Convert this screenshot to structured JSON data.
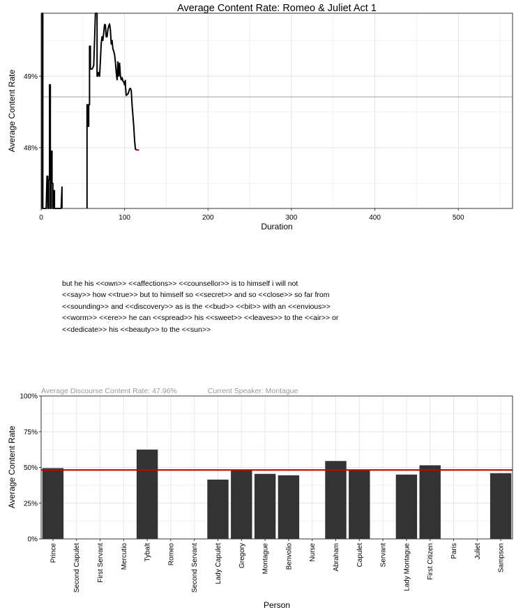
{
  "top_chart": {
    "chart_data": {
      "type": "line",
      "title": "Average Content Rate: Romeo & Juliet Act 1",
      "xlabel": "Duration",
      "ylabel": "Average Content Rate",
      "xlim": [
        0,
        565
      ],
      "ylim": [
        47.15,
        49.88
      ],
      "x_ticks": [
        0,
        100,
        200,
        300,
        400,
        500
      ],
      "x_tick_labels": [
        "0",
        "100",
        "200",
        "300",
        "400",
        "500"
      ],
      "y_ticks": [
        48,
        49
      ],
      "y_tick_labels": [
        "48%",
        "49%"
      ],
      "reference_line": 48.71,
      "grid": true,
      "series": [
        {
          "x": [
            1,
            1,
            1,
            2,
            2,
            2,
            2,
            3,
            3,
            4,
            5,
            6,
            7,
            8,
            8,
            9,
            9,
            10,
            10,
            11,
            11,
            12,
            12,
            13,
            13,
            14,
            14,
            15,
            15,
            16,
            16,
            17,
            17,
            18,
            19,
            20,
            21,
            22,
            23,
            24,
            25,
            25
          ],
          "y": [
            47.15,
            49.88,
            47.15,
            47.15,
            49.88,
            49.88,
            47.15,
            47.15,
            47.15,
            47.15,
            47.15,
            47.15,
            47.6,
            47.6,
            47.15,
            47.15,
            47.55,
            47.55,
            48.88,
            48.88,
            47.15,
            47.15,
            47.95,
            47.95,
            47.5,
            47.5,
            47.15,
            47.15,
            47.4,
            47.4,
            47.15,
            47.15,
            47.15,
            47.15,
            47.15,
            47.15,
            47.15,
            47.15,
            47.15,
            47.15,
            47.45,
            47.15
          ]
        },
        {
          "x": [
            55,
            55,
            56,
            56,
            57,
            57,
            58,
            58,
            59,
            59,
            60,
            60,
            61,
            62,
            63,
            64,
            65,
            66,
            67,
            67,
            68,
            68,
            69,
            70,
            71,
            72,
            73,
            74,
            75,
            76,
            77,
            78,
            79,
            80,
            81,
            82,
            83,
            84,
            85,
            86,
            87,
            88,
            89,
            90,
            91,
            92,
            93,
            94,
            95,
            96,
            97,
            98,
            99,
            100,
            100,
            101,
            101,
            102,
            103,
            104,
            105,
            106,
            107,
            108,
            109,
            110,
            111,
            112,
            113,
            114,
            115
          ],
          "y": [
            47.15,
            48.6,
            48.6,
            48.3,
            48.3,
            48.6,
            48.6,
            49.42,
            49.42,
            49.1,
            49.1,
            49.1,
            49.1,
            49.12,
            49.15,
            49.5,
            49.88,
            49.88,
            49.88,
            49.0,
            49.0,
            49.05,
            49.05,
            49.0,
            49.2,
            49.45,
            49.55,
            49.5,
            49.6,
            49.72,
            49.72,
            49.55,
            49.55,
            49.65,
            49.7,
            49.73,
            49.65,
            49.45,
            49.5,
            49.38,
            49.35,
            49.3,
            49.2,
            49.05,
            48.95,
            49.2,
            49.0,
            49.18,
            49.0,
            48.95,
            48.98,
            48.93,
            48.92,
            48.88,
            48.9,
            48.94,
            48.88,
            48.73,
            48.74,
            48.75,
            48.78,
            48.82,
            48.83,
            48.8,
            48.6,
            48.45,
            48.3,
            48.1,
            47.98,
            47.97,
            47.97
          ]
        }
      ],
      "end_marker": {
        "x": 114,
        "y": 47.97,
        "color": "#cc0000"
      }
    }
  },
  "text": {
    "lines": [
      "but he his <<own>> <<affections>> <<counsellor>> is to himself i will not",
      "<<say>> how <<true>> but to himself so <<secret>> and so <<close>> so far from",
      "<<sounding>> and <<discovery>> as is the <<bud>> <<bit>> with an <<envious>>",
      "<<worm>> <<ere>> he can <<spread>> his <<sweet>> <<leaves>> to the <<air>> or",
      "<<dedicate>> his <<beauty>> to the <<sun>>"
    ]
  },
  "status": {
    "discourse_rate": "Average Discourse Content Rate:  47.96%",
    "current_speaker": "Current Speaker:   Montague"
  },
  "bottom_chart": {
    "chart_data": {
      "type": "bar",
      "xlabel": "Person",
      "ylabel": "Average Content Rate",
      "ylim": [
        0,
        100
      ],
      "y_ticks": [
        0,
        25,
        50,
        75,
        100
      ],
      "y_tick_labels": [
        "0%",
        "25%",
        "50%",
        "75%",
        "100%"
      ],
      "reference_line": 48.2,
      "reference_color": "#cc0000",
      "bar_color": "#333333",
      "grid": true,
      "categories": [
        "Prince",
        "Second Capulet",
        "First Servant",
        "Mercutio",
        "Tybalt",
        "Romeo",
        "Second Servant",
        "Lady Capulet",
        "Gregory",
        "Montague",
        "Benvolio",
        "Nurse",
        "Abraham",
        "Capulet",
        "Servant",
        "Lady Montague",
        "First Citizen",
        "Paris",
        "Juliet",
        "Sampson"
      ],
      "values": [
        49.5,
        0,
        0,
        0,
        62.5,
        0,
        0,
        41.5,
        48.5,
        45.5,
        44.5,
        0,
        54.5,
        48.5,
        0,
        45,
        51.5,
        0,
        0,
        46
      ]
    }
  }
}
